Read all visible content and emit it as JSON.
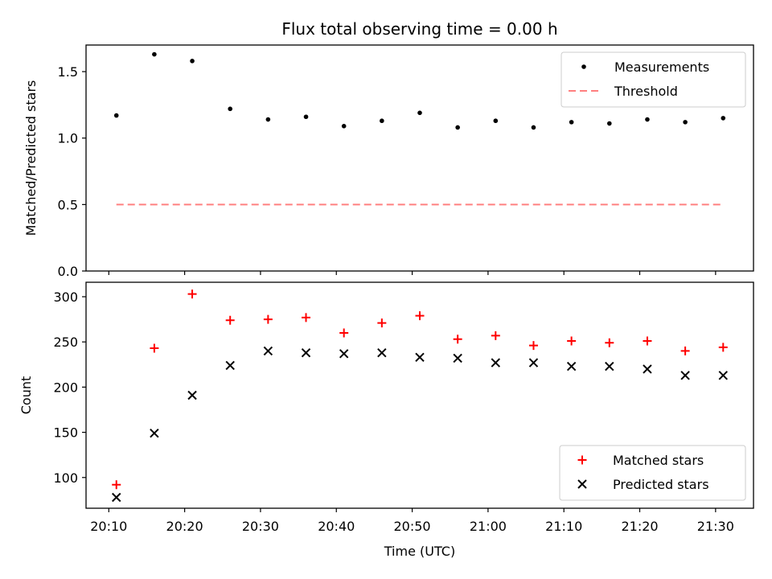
{
  "title": "Flux total observing time = 0.00 h",
  "chart_data": [
    {
      "type": "scatter",
      "ylabel": "Matched/Predicted stars",
      "xlabel": "",
      "ylim": [
        0,
        1.7
      ],
      "yticks": [
        "0.0",
        "0.5",
        "1.0",
        "1.5"
      ],
      "ytick_values": [
        0,
        0.5,
        1.0,
        1.5
      ],
      "legend": "top-right",
      "series": [
        {
          "name": "Measurements",
          "marker": "dot",
          "color": "#000000",
          "x": [
            "20:11",
            "20:16",
            "20:21",
            "20:26",
            "20:31",
            "20:36",
            "20:41",
            "20:46",
            "20:51",
            "20:56",
            "21:01",
            "21:06",
            "21:11",
            "21:16",
            "21:21",
            "21:26",
            "21:31"
          ],
          "values": [
            1.17,
            1.63,
            1.58,
            1.22,
            1.14,
            1.16,
            1.09,
            1.13,
            1.19,
            1.08,
            1.13,
            1.08,
            1.12,
            1.11,
            1.14,
            1.12,
            1.15
          ]
        },
        {
          "name": "Threshold",
          "marker": "dashed-line",
          "color": "#ff8080",
          "x": [
            "20:11",
            "21:31"
          ],
          "values": [
            0.5,
            0.5
          ]
        }
      ]
    },
    {
      "type": "scatter",
      "ylabel": "Count",
      "xlabel": "Time (UTC)",
      "ylim": [
        66,
        316
      ],
      "yticks": [
        "100",
        "150",
        "200",
        "250",
        "300"
      ],
      "ytick_values": [
        100,
        150,
        200,
        250,
        300
      ],
      "xticks": [
        "20:10",
        "20:20",
        "20:30",
        "20:40",
        "20:50",
        "21:00",
        "21:10",
        "21:20",
        "21:30"
      ],
      "legend": "bottom-right",
      "series": [
        {
          "name": "Matched stars",
          "marker": "plus",
          "color": "#ff0000",
          "x": [
            "20:11",
            "20:16",
            "20:21",
            "20:26",
            "20:31",
            "20:36",
            "20:41",
            "20:46",
            "20:51",
            "20:56",
            "21:01",
            "21:06",
            "21:11",
            "21:16",
            "21:21",
            "21:26",
            "21:31"
          ],
          "values": [
            92,
            243,
            303,
            274,
            275,
            277,
            260,
            271,
            279,
            253,
            257,
            246,
            251,
            249,
            251,
            240,
            244
          ]
        },
        {
          "name": "Predicted stars",
          "marker": "x",
          "color": "#000000",
          "x": [
            "20:11",
            "20:16",
            "20:21",
            "20:26",
            "20:31",
            "20:36",
            "20:41",
            "20:46",
            "20:51",
            "20:56",
            "21:01",
            "21:06",
            "21:11",
            "21:16",
            "21:21",
            "21:26",
            "21:31"
          ],
          "values": [
            78,
            149,
            191,
            224,
            240,
            238,
            237,
            238,
            233,
            232,
            227,
            227,
            223,
            223,
            220,
            213,
            213
          ]
        }
      ]
    }
  ],
  "x_axis": {
    "min": "20:07",
    "max": "21:35"
  }
}
